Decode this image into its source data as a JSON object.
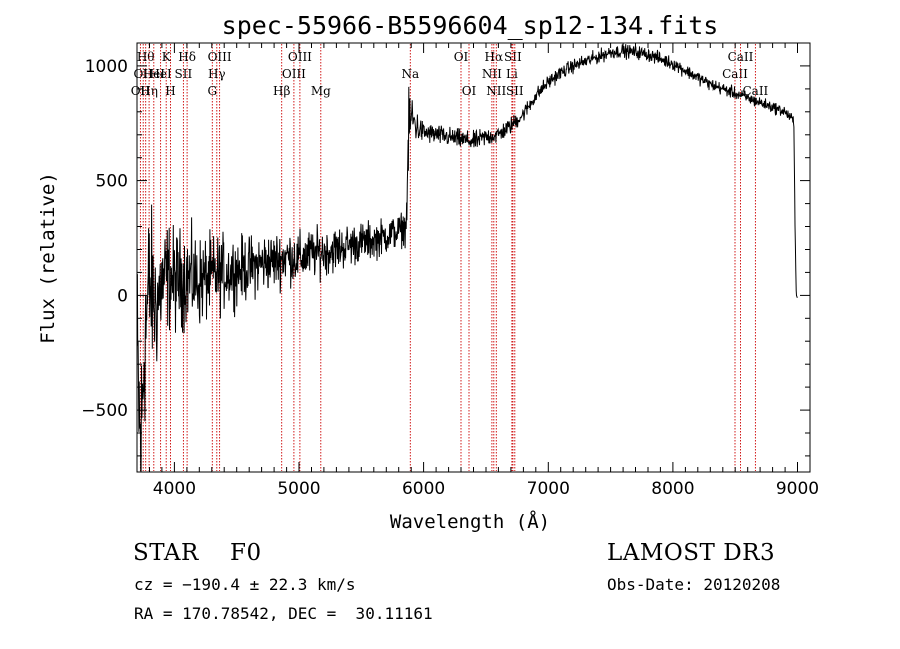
{
  "chart_data": {
    "type": "line",
    "title": "spec-55966-B5596604_sp12-134.fits",
    "xlabel": "Wavelength (Å)",
    "ylabel": "Flux (relative)",
    "xlim": [
      3700,
      9100
    ],
    "ylim": [
      -770,
      1100
    ],
    "xticks": [
      4000,
      5000,
      6000,
      7000,
      8000,
      9000
    ],
    "yticks": [
      -500,
      0,
      500,
      1000
    ],
    "grid": false,
    "series": [
      {
        "name": "flux",
        "color": "#000000",
        "anchors": [
          [
            3700,
            -250
          ],
          [
            3730,
            -700
          ],
          [
            3760,
            -200
          ],
          [
            3800,
            50
          ],
          [
            3850,
            -50
          ],
          [
            3900,
            50
          ],
          [
            3950,
            90
          ],
          [
            4000,
            60
          ],
          [
            4100,
            80
          ],
          [
            4200,
            60
          ],
          [
            4300,
            80
          ],
          [
            4400,
            100
          ],
          [
            4500,
            110
          ],
          [
            4600,
            120
          ],
          [
            4700,
            140
          ],
          [
            4800,
            150
          ],
          [
            4900,
            170
          ],
          [
            5000,
            160
          ],
          [
            5100,
            180
          ],
          [
            5200,
            190
          ],
          [
            5300,
            200
          ],
          [
            5400,
            220
          ],
          [
            5500,
            230
          ],
          [
            5600,
            240
          ],
          [
            5700,
            260
          ],
          [
            5800,
            280
          ],
          [
            5860,
            300
          ],
          [
            5880,
            700
          ],
          [
            5900,
            780
          ],
          [
            5950,
            730
          ],
          [
            6000,
            710
          ],
          [
            6100,
            700
          ],
          [
            6200,
            690
          ],
          [
            6300,
            680
          ],
          [
            6400,
            670
          ],
          [
            6500,
            690
          ],
          [
            6600,
            700
          ],
          [
            6700,
            740
          ],
          [
            6800,
            790
          ],
          [
            6900,
            870
          ],
          [
            7000,
            930
          ],
          [
            7100,
            970
          ],
          [
            7200,
            1000
          ],
          [
            7300,
            1020
          ],
          [
            7400,
            1040
          ],
          [
            7500,
            1060
          ],
          [
            7600,
            1065
          ],
          [
            7700,
            1060
          ],
          [
            7800,
            1050
          ],
          [
            7900,
            1030
          ],
          [
            8000,
            1010
          ],
          [
            8100,
            980
          ],
          [
            8200,
            950
          ],
          [
            8300,
            920
          ],
          [
            8400,
            900
          ],
          [
            8500,
            880
          ],
          [
            8600,
            860
          ],
          [
            8700,
            840
          ],
          [
            8800,
            820
          ],
          [
            8900,
            800
          ],
          [
            8970,
            760
          ],
          [
            8980,
            300
          ],
          [
            8990,
            0
          ],
          [
            9000,
            0
          ]
        ],
        "noise": [
          [
            3700,
            230
          ],
          [
            3800,
            180
          ],
          [
            3900,
            120
          ],
          [
            4000,
            110
          ],
          [
            4200,
            95
          ],
          [
            4500,
            70
          ],
          [
            4800,
            60
          ],
          [
            5200,
            50
          ],
          [
            5600,
            40
          ],
          [
            5850,
            35
          ],
          [
            5880,
            80
          ],
          [
            5930,
            40
          ],
          [
            6000,
            22
          ],
          [
            6500,
            20
          ],
          [
            7000,
            15
          ],
          [
            8000,
            14
          ],
          [
            8970,
            12
          ],
          [
            9000,
            5
          ]
        ]
      }
    ],
    "lines": [
      {
        "x": 3727,
        "label": "OII",
        "row": 2
      },
      {
        "x": 3750,
        "label": "OII",
        "row": 1
      },
      {
        "x": 3770,
        "label": "Hθ",
        "row": 0
      },
      {
        "x": 3797,
        "label": "Hη",
        "row": 2
      },
      {
        "x": 3835,
        "label": "HeI",
        "row": 1
      },
      {
        "x": 3889,
        "label": "HeI",
        "row": 1
      },
      {
        "x": 3934,
        "label": "K",
        "row": 0
      },
      {
        "x": 3969,
        "label": "H",
        "row": 2
      },
      {
        "x": 4072,
        "label": "SII",
        "row": 1
      },
      {
        "x": 4102,
        "label": "Hδ",
        "row": 0
      },
      {
        "x": 4304,
        "label": "G",
        "row": 2
      },
      {
        "x": 4340,
        "label": "Hγ",
        "row": 1
      },
      {
        "x": 4363,
        "label": "OIII",
        "row": 0
      },
      {
        "x": 4861,
        "label": "Hβ",
        "row": 2
      },
      {
        "x": 4959,
        "label": "OIII",
        "row": 1
      },
      {
        "x": 5007,
        "label": "OIII",
        "row": 0
      },
      {
        "x": 5175,
        "label": "Mg",
        "row": 2
      },
      {
        "x": 5893,
        "label": "Na",
        "row": 1
      },
      {
        "x": 6300,
        "label": "OI",
        "row": 0
      },
      {
        "x": 6364,
        "label": "OI",
        "row": 2
      },
      {
        "x": 6548,
        "label": "NII",
        "row": 1
      },
      {
        "x": 6563,
        "label": "Hα",
        "row": 0
      },
      {
        "x": 6583,
        "label": "NII",
        "row": 2
      },
      {
        "x": 6708,
        "label": "Li",
        "row": 1
      },
      {
        "x": 6716,
        "label": "SII",
        "row": 0
      },
      {
        "x": 6731,
        "label": "SII",
        "row": 2
      },
      {
        "x": 8498,
        "label": "CaII",
        "row": 1
      },
      {
        "x": 8542,
        "label": "CaII",
        "row": 0
      },
      {
        "x": 8662,
        "label": "CaII",
        "row": 2
      }
    ],
    "line_color": "#cc0000"
  },
  "info": {
    "class": "STAR    F0",
    "survey": "LAMOST DR3",
    "cz": "cz = −190.4 ± 22.3 km/s",
    "obs_date": "Obs-Date: 20120208",
    "coords": "RA = 170.78542, DEC =  30.11161"
  }
}
